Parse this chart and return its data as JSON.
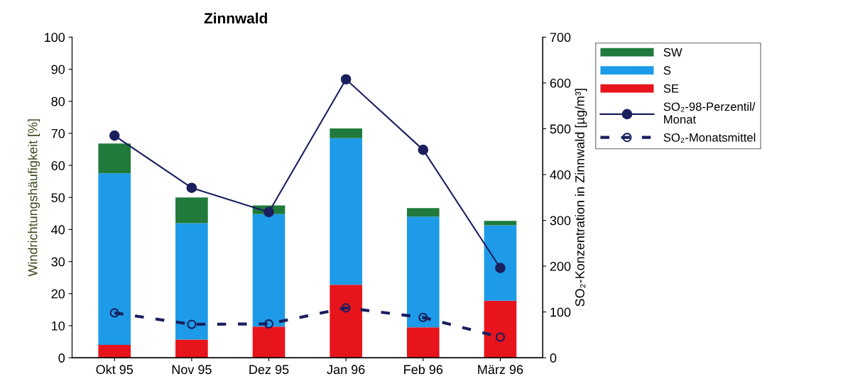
{
  "chart_data": {
    "type": "bar",
    "title": "Zinnwald",
    "ylabel": "Windrichtungshäufigkeit [%]",
    "y2label": "SO₂-Konzentration in Zinnwald [µg/m³]",
    "categories": [
      "Okt 95",
      "Nov 95",
      "Dez 95",
      "Jan 96",
      "Feb 96",
      "März 96"
    ],
    "stacked": true,
    "legend": "right",
    "ylim": [
      0,
      100
    ],
    "yticks": [
      0,
      10,
      20,
      30,
      40,
      50,
      60,
      70,
      80,
      90,
      100
    ],
    "y2lim": [
      0,
      700
    ],
    "y2ticks": [
      0,
      100,
      200,
      300,
      400,
      500,
      600,
      700
    ],
    "series": [
      {
        "name": "SE",
        "color": "#e8141c",
        "values": [
          4,
          5.7,
          9.7,
          22.8,
          9.5,
          17.8
        ]
      },
      {
        "name": "S",
        "color": "#1e9be8",
        "values": [
          53.5,
          36.3,
          35.1,
          45.7,
          34.5,
          23.5
        ]
      },
      {
        "name": "SW",
        "color": "#1f7a3c",
        "values": [
          9.3,
          8,
          2.7,
          3,
          2.7,
          1.4
        ]
      },
      {
        "name": "SO₂-98-Perzentil/\nMonat",
        "type": "line",
        "axis": "y2",
        "color": "#1a1f5e",
        "marker": "circle",
        "line_style": "solid",
        "values": [
          485,
          371,
          318,
          608,
          454,
          196
        ]
      },
      {
        "name": "SO₂-Monatsmittel",
        "type": "line",
        "axis": "y2",
        "color": "#1a1f5e",
        "marker": "circle",
        "line_style": "dashed",
        "values": [
          98,
          73,
          74,
          109,
          88,
          45
        ]
      }
    ]
  }
}
